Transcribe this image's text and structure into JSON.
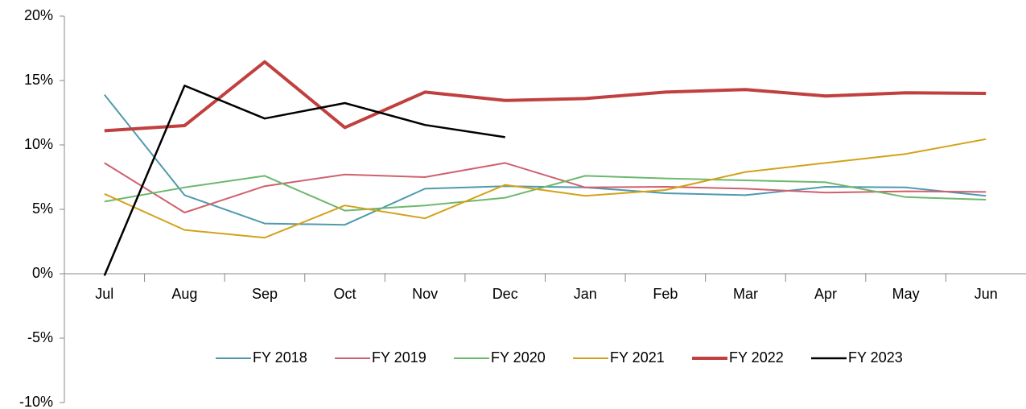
{
  "chart_data": {
    "type": "line",
    "categories": [
      "Jul",
      "Aug",
      "Sep",
      "Oct",
      "Nov",
      "Dec",
      "Jan",
      "Feb",
      "Mar",
      "Apr",
      "May",
      "Jun"
    ],
    "series": [
      {
        "name": "FY 2018",
        "color": "#4e9aae",
        "width": 2,
        "values": [
          13.9,
          6.1,
          3.9,
          3.8,
          6.6,
          6.8,
          6.7,
          6.25,
          6.1,
          6.75,
          6.7,
          6.05
        ]
      },
      {
        "name": "FY 2019",
        "color": "#d0606e",
        "width": 2,
        "values": [
          8.6,
          4.75,
          6.8,
          7.7,
          7.5,
          8.6,
          6.7,
          6.75,
          6.6,
          6.3,
          6.4,
          6.35
        ]
      },
      {
        "name": "FY 2020",
        "color": "#6cb86d",
        "width": 2,
        "values": [
          5.6,
          6.7,
          7.6,
          4.9,
          5.3,
          5.9,
          7.6,
          7.4,
          7.25,
          7.1,
          5.95,
          5.75
        ]
      },
      {
        "name": "FY 2021",
        "color": "#d4a11a",
        "width": 2,
        "values": [
          6.2,
          3.4,
          2.8,
          5.3,
          4.3,
          6.9,
          6.05,
          6.5,
          7.9,
          8.6,
          9.3,
          10.45
        ]
      },
      {
        "name": "FY 2022",
        "color": "#c0403f",
        "width": 4,
        "values": [
          11.1,
          11.5,
          16.45,
          11.35,
          14.1,
          13.45,
          13.6,
          14.1,
          14.3,
          13.8,
          14.05,
          14.0
        ]
      },
      {
        "name": "FY 2023",
        "color": "#000000",
        "width": 2.5,
        "values": [
          -0.15,
          14.6,
          12.05,
          13.25,
          11.55,
          10.6,
          null,
          null,
          null,
          null,
          null,
          null
        ]
      }
    ],
    "ylim": [
      -10,
      20
    ],
    "yticks": [
      {
        "value": -10,
        "label": "-10%"
      },
      {
        "value": -5,
        "label": "-5%"
      },
      {
        "value": 0,
        "label": "0%"
      },
      {
        "value": 5,
        "label": "5%"
      },
      {
        "value": 10,
        "label": "10%"
      },
      {
        "value": 15,
        "label": "15%"
      },
      {
        "value": 20,
        "label": "20%"
      }
    ],
    "grid": false,
    "legend": "bottom"
  }
}
